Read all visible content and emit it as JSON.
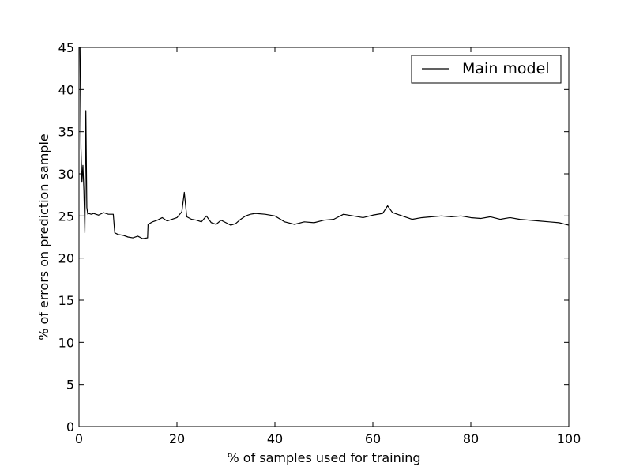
{
  "chart_data": {
    "type": "line",
    "title": "",
    "xlabel": "% of samples used for training",
    "ylabel": "% of errors on prediction sample",
    "xlim": [
      0,
      100
    ],
    "ylim": [
      0,
      45
    ],
    "x_ticks": [
      0,
      20,
      40,
      60,
      80,
      100
    ],
    "y_ticks": [
      0,
      5,
      10,
      15,
      20,
      25,
      30,
      35,
      40,
      45
    ],
    "grid": false,
    "legend": {
      "position": "top-right",
      "entries": [
        "Main model"
      ]
    },
    "series": [
      {
        "name": "Main model",
        "color": "#000000",
        "x": [
          0.2,
          0.4,
          0.6,
          0.8,
          1.0,
          1.2,
          1.4,
          1.6,
          1.8,
          2.0,
          2.5,
          3,
          4,
          5,
          6,
          7,
          7.3,
          8,
          9,
          10,
          11,
          12,
          13,
          14,
          14.1,
          15,
          16,
          17,
          18,
          19,
          20,
          21,
          21.5,
          22,
          23,
          24,
          25,
          26,
          27,
          28,
          29,
          30,
          31,
          32,
          33,
          34,
          35,
          36,
          38,
          40,
          42,
          44,
          46,
          48,
          50,
          52,
          54,
          56,
          58,
          60,
          62,
          63,
          64,
          66,
          68,
          70,
          72,
          74,
          76,
          78,
          80,
          82,
          84,
          86,
          88,
          90,
          92,
          94,
          96,
          98,
          100
        ],
        "values": [
          45,
          33,
          29,
          31,
          28,
          23,
          37.5,
          26,
          25.2,
          25.3,
          25.2,
          25.3,
          25.1,
          25.4,
          25.2,
          25.2,
          23.0,
          22.8,
          22.7,
          22.5,
          22.4,
          22.6,
          22.3,
          22.4,
          24.0,
          24.3,
          24.5,
          24.8,
          24.4,
          24.6,
          24.8,
          25.5,
          27.8,
          24.9,
          24.6,
          24.5,
          24.3,
          25.0,
          24.2,
          24.0,
          24.5,
          24.2,
          23.9,
          24.1,
          24.6,
          25.0,
          25.2,
          25.3,
          25.2,
          25.0,
          24.3,
          24.0,
          24.3,
          24.2,
          24.5,
          24.6,
          25.2,
          25.0,
          24.8,
          25.1,
          25.3,
          26.2,
          25.4,
          25.0,
          24.6,
          24.8,
          24.9,
          25.0,
          24.9,
          25.0,
          24.8,
          24.7,
          24.9,
          24.6,
          24.8,
          24.6,
          24.5,
          24.4,
          24.3,
          24.2,
          23.9
        ]
      }
    ]
  }
}
